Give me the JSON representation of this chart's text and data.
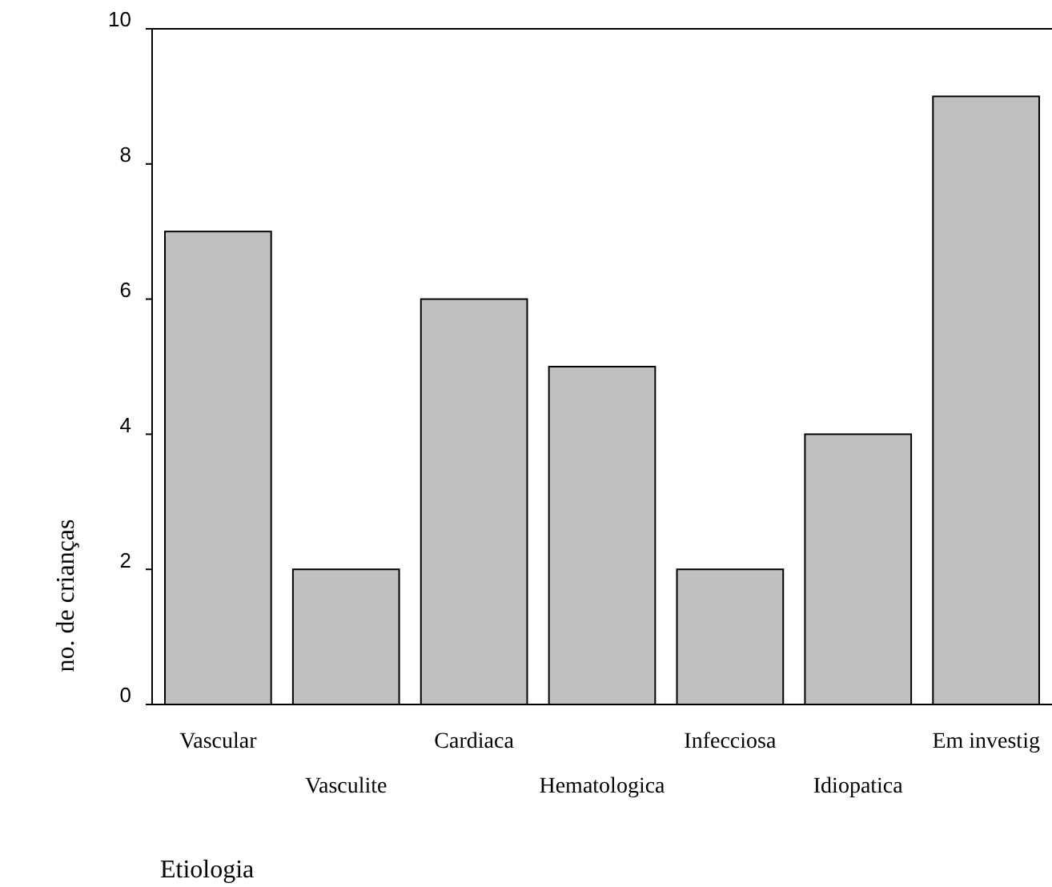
{
  "chart_data": {
    "type": "bar",
    "xlabel": "Etiologia",
    "ylabel": "no. de crianças",
    "categories": [
      "Vascular",
      "Vasculite",
      "Cardiaca",
      "Hematologica",
      "Infecciosa",
      "Idiopatica",
      "Em investig"
    ],
    "values": [
      7,
      2,
      6,
      5,
      2,
      4,
      9
    ],
    "color": "#c0c0c0",
    "ylim": [
      0,
      10
    ],
    "yticks": [
      0,
      2,
      4,
      6,
      8,
      10
    ],
    "grid": false
  }
}
